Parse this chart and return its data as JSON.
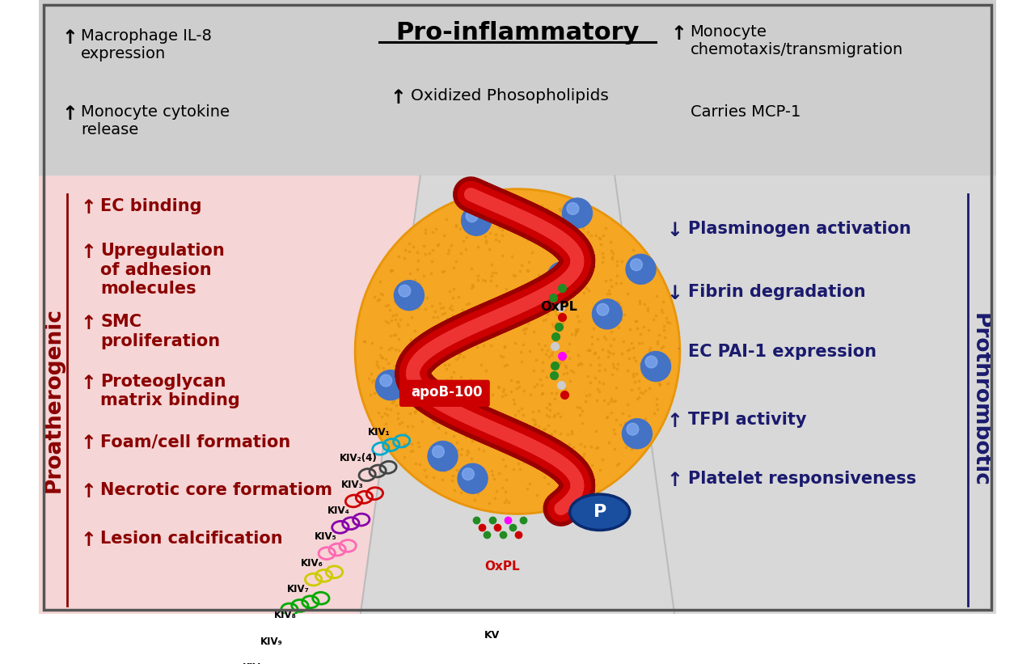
{
  "title": "Pro-inflammatory",
  "top_left_items": [
    {
      "arrow": "↑",
      "text": "Macrophage IL-8\nexpression"
    },
    {
      "arrow": "↑",
      "text": "Monocyte cytokine\nrelease"
    }
  ],
  "top_center_items": [
    {
      "arrow": "↑",
      "text": "Oxidized Phosopholipids"
    }
  ],
  "top_right_items": [
    {
      "arrow": "↑",
      "text": "Monocyte\nchemotaxis/transmigration"
    },
    {
      "arrow": "",
      "text": "Carries MCP-1"
    }
  ],
  "left_label": "Proatherogenic",
  "right_label": "Prothrombotic",
  "left_items": [
    {
      "arrow": "↑",
      "text": "EC binding",
      "color": "#8b0000"
    },
    {
      "arrow": "↑",
      "text": "Upregulation\nof adhesion\nmolecules",
      "color": "#8b0000"
    },
    {
      "arrow": "↑",
      "text": "SMC\nproliferation",
      "color": "#8b0000"
    },
    {
      "arrow": "↑",
      "text": "Proteoglycan\nmatrix binding",
      "color": "#8b0000"
    },
    {
      "arrow": "↑",
      "text": "Foam/cell formation",
      "color": "#8b0000"
    },
    {
      "arrow": "↑",
      "text": "Necrotic core formatiom",
      "color": "#8b0000"
    },
    {
      "arrow": "↑",
      "text": "Lesion calcification",
      "color": "#8b0000"
    }
  ],
  "right_items": [
    {
      "arrow": "↓",
      "text": "Plasminogen activation",
      "color": "#1a1a6e"
    },
    {
      "arrow": "↓",
      "text": "Fibrin degradation",
      "color": "#1a1a6e"
    },
    {
      "arrow": "↑",
      "text": "EC PAI-1 expression",
      "color": "#1a1a6e"
    },
    {
      "arrow": "↑",
      "text": "TFPI activity",
      "color": "#1a1a6e"
    },
    {
      "arrow": "↑",
      "text": "Platelet responsiveness",
      "color": "#1a1a6e"
    }
  ],
  "kiv_colors": [
    "#00aacc",
    "#555555",
    "#555555",
    "#555555",
    "#555555",
    "#555555",
    "#cc0000",
    "#8800cc",
    "#ff69b4",
    "#ffcc00",
    "#ffa500",
    "#00aa00",
    "#00aaff",
    "#0000cc"
  ],
  "bg_top": "#d0d0d0",
  "bg_main": "#e0e0e0",
  "bg_left": "#f5d5d5",
  "bg_right": "#d8d8d8",
  "circle_color": "#f5a623",
  "border_color": "#555555"
}
